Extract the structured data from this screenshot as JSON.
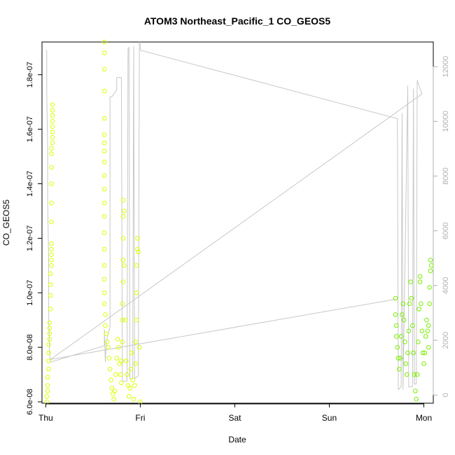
{
  "chart_data": {
    "type": "scatter",
    "title": "ATOM3 Northeast_Pacific_1 CO_GEOS5",
    "xlabel": "Date",
    "ylabel": "CO_GEOS5",
    "y2label": "",
    "x_ticks": [
      "Thu",
      "Fri",
      "Sat",
      "Sun",
      "Mon"
    ],
    "xlim": [
      -0.04,
      4.1
    ],
    "ylim": [
      5.95e-08,
      1.92e-07
    ],
    "y_ticks": [
      {
        "value": 6e-08,
        "label": "6.0e-08"
      },
      {
        "value": 8e-08,
        "label": "8.0e-08"
      },
      {
        "value": 1e-07,
        "label": "1.0e-07"
      },
      {
        "value": 1.2e-07,
        "label": "1.2e-07"
      },
      {
        "value": 1.4e-07,
        "label": "1.4e-07"
      },
      {
        "value": 1.6e-07,
        "label": "1.6e-07"
      },
      {
        "value": 1.8e-07,
        "label": "1.8e-07"
      }
    ],
    "y2lim": [
      -300,
      12900
    ],
    "y2_ticks": [
      {
        "value": 0,
        "label": "0"
      },
      {
        "value": 2000,
        "label": "2000"
      },
      {
        "value": 4000,
        "label": "4000"
      },
      {
        "value": 6000,
        "label": "6000"
      },
      {
        "value": 8000,
        "label": "8000"
      },
      {
        "value": 10000,
        "label": "10000"
      },
      {
        "value": 12000,
        "label": "12000"
      }
    ],
    "colors": {
      "scatter_early": "#ddff00",
      "scatter_late": "#77ee00",
      "altitude_line": "#c8c8c8",
      "axis": "#000000",
      "right_axis": "#b0b0b0"
    },
    "series": [
      {
        "type": "scatter",
        "points": [
          [
            0.01,
            6e-08
          ],
          [
            0.01,
            6.2e-08
          ],
          [
            0.02,
            6.4e-08
          ],
          [
            0.02,
            6.6e-08
          ],
          [
            0.02,
            6.9e-08
          ],
          [
            0.03,
            7.2e-08
          ],
          [
            0.03,
            7.5e-08
          ],
          [
            0.03,
            7.8e-08
          ],
          [
            0.03,
            8.1e-08
          ],
          [
            0.04,
            8.3e-08
          ],
          [
            0.04,
            8.5e-08
          ],
          [
            0.04,
            8.7e-08
          ],
          [
            0.04,
            8.9e-08
          ],
          [
            0.05,
            9.4e-08
          ],
          [
            0.05,
            9.9e-08
          ],
          [
            0.05,
            1.03e-07
          ],
          [
            0.05,
            1.07e-07
          ],
          [
            0.06,
            1.1e-07
          ],
          [
            0.06,
            1.12e-07
          ],
          [
            0.06,
            1.14e-07
          ],
          [
            0.06,
            1.16e-07
          ],
          [
            0.06,
            1.18e-07
          ],
          [
            0.06,
            1.26e-07
          ],
          [
            0.06,
            1.33e-07
          ],
          [
            0.06,
            1.4e-07
          ],
          [
            0.06,
            1.46e-07
          ],
          [
            0.06,
            1.51e-07
          ],
          [
            0.06,
            1.53e-07
          ],
          [
            0.07,
            1.55e-07
          ],
          [
            0.07,
            1.57e-07
          ],
          [
            0.07,
            1.59e-07
          ],
          [
            0.07,
            1.61e-07
          ],
          [
            0.07,
            1.63e-07
          ],
          [
            0.07,
            1.65e-07
          ],
          [
            0.07,
            1.67e-07
          ],
          [
            0.07,
            1.69e-07
          ],
          [
            0.62,
            1.92e-07
          ],
          [
            0.62,
            1.88e-07
          ],
          [
            0.62,
            1.82e-07
          ],
          [
            0.62,
            1.74e-07
          ],
          [
            0.62,
            1.64e-07
          ],
          [
            0.62,
            1.58e-07
          ],
          [
            0.62,
            1.55e-07
          ],
          [
            0.62,
            1.52e-07
          ],
          [
            0.62,
            1.48e-07
          ],
          [
            0.62,
            1.43e-07
          ],
          [
            0.62,
            1.38e-07
          ],
          [
            0.62,
            1.33e-07
          ],
          [
            0.62,
            1.28e-07
          ],
          [
            0.62,
            1.22e-07
          ],
          [
            0.62,
            1.16e-07
          ],
          [
            0.62,
            1.1e-07
          ],
          [
            0.62,
            1.05e-07
          ],
          [
            0.62,
            1e-07
          ],
          [
            0.62,
            9.6e-08
          ],
          [
            0.63,
            9.2e-08
          ],
          [
            0.63,
            8.8e-08
          ],
          [
            0.64,
            8.5e-08
          ],
          [
            0.65,
            8.2e-08
          ],
          [
            0.66,
            8e-08
          ],
          [
            0.67,
            7.6e-08
          ],
          [
            0.68,
            7.2e-08
          ],
          [
            0.69,
            6.8e-08
          ],
          [
            0.7,
            6.5e-08
          ],
          [
            0.71,
            6.3e-08
          ],
          [
            0.72,
            6.1e-08
          ],
          [
            0.73,
            6.4e-08
          ],
          [
            0.74,
            7e-08
          ],
          [
            0.75,
            7.6e-08
          ],
          [
            0.76,
            8.3e-08
          ],
          [
            0.77,
            8e-08
          ],
          [
            0.78,
            7.4e-08
          ],
          [
            0.79,
            7e-08
          ],
          [
            0.8,
            6.7e-08
          ],
          [
            0.8,
            7.5e-08
          ],
          [
            0.81,
            8.2e-08
          ],
          [
            0.81,
            9e-08
          ],
          [
            0.81,
            9.6e-08
          ],
          [
            0.82,
            1.04e-07
          ],
          [
            0.82,
            1.12e-07
          ],
          [
            0.82,
            1.2e-07
          ],
          [
            0.82,
            1.28e-07
          ],
          [
            0.82,
            1.34e-07
          ],
          [
            0.83,
            1.3e-07
          ],
          [
            0.83,
            1.1e-07
          ],
          [
            0.84,
            9e-08
          ],
          [
            0.85,
            7.5e-08
          ],
          [
            0.86,
            7e-08
          ],
          [
            0.87,
            6.6e-08
          ],
          [
            0.88,
            6.2e-08
          ],
          [
            0.89,
            6.5e-08
          ],
          [
            0.9,
            7.2e-08
          ],
          [
            0.91,
            7.8e-08
          ],
          [
            0.92,
            6.8e-08
          ],
          [
            0.93,
            6.1e-08
          ],
          [
            0.94,
            6.6e-08
          ],
          [
            0.95,
            7.4e-08
          ],
          [
            0.95,
            8.2e-08
          ],
          [
            0.96,
            9e-08
          ],
          [
            0.96,
            1e-07
          ],
          [
            0.96,
            1.1e-07
          ],
          [
            0.97,
            1.16e-07
          ],
          [
            0.97,
            1.2e-07
          ],
          [
            0.98,
            1.15e-07
          ],
          [
            0.99,
            8e-08
          ],
          [
            1.0,
            6e-08
          ]
        ],
        "color": "#ddff00"
      },
      {
        "type": "scatter",
        "points": [
          [
            3.7,
            9.8e-08
          ],
          [
            3.7,
            9.2e-08
          ],
          [
            3.71,
            8.8e-08
          ],
          [
            3.71,
            8.4e-08
          ],
          [
            3.72,
            8e-08
          ],
          [
            3.73,
            7.6e-08
          ],
          [
            3.74,
            7.2e-08
          ],
          [
            3.75,
            7.6e-08
          ],
          [
            3.76,
            8.4e-08
          ],
          [
            3.77,
            9.2e-08
          ],
          [
            3.78,
            9.6e-08
          ],
          [
            3.79,
            9e-08
          ],
          [
            3.8,
            8.2e-08
          ],
          [
            3.81,
            7.4e-08
          ],
          [
            3.82,
            7e-08
          ],
          [
            3.83,
            7.8e-08
          ],
          [
            3.84,
            8.6e-08
          ],
          [
            3.85,
            9.6e-08
          ],
          [
            3.86,
            1.04e-07
          ],
          [
            3.87,
            9.8e-08
          ],
          [
            3.88,
            8.8e-08
          ],
          [
            3.89,
            7.8e-08
          ],
          [
            3.9,
            7e-08
          ],
          [
            3.91,
            6.4e-08
          ],
          [
            3.92,
            6.1e-08
          ],
          [
            3.93,
            7e-08
          ],
          [
            3.94,
            8.2e-08
          ],
          [
            3.95,
            9.4e-08
          ],
          [
            3.96,
            1.04e-07
          ],
          [
            3.96,
            1.06e-07
          ],
          [
            3.97,
            9.6e-08
          ],
          [
            3.98,
            8.6e-08
          ],
          [
            3.99,
            7.8e-08
          ],
          [
            4.0,
            7.4e-08
          ],
          [
            4.01,
            7.8e-08
          ],
          [
            4.02,
            8.4e-08
          ],
          [
            4.03,
            9e-08
          ],
          [
            4.04,
            8.6e-08
          ],
          [
            4.05,
            8e-08
          ],
          [
            4.05,
            8.8e-08
          ],
          [
            4.06,
            9.6e-08
          ],
          [
            4.06,
            1.02e-07
          ],
          [
            4.07,
            1.08e-07
          ],
          [
            4.07,
            1.12e-07
          ],
          [
            4.08,
            1.1e-07
          ]
        ],
        "color": "#77ee00"
      },
      {
        "type": "line",
        "axis": "right",
        "points": [
          [
            0.0,
            12600
          ],
          [
            0.01,
            12550
          ],
          [
            0.01,
            11000
          ],
          [
            0.02,
            9000
          ],
          [
            0.02,
            7000
          ],
          [
            0.03,
            5000
          ],
          [
            0.03,
            3000
          ],
          [
            0.04,
            1500
          ],
          [
            0.05,
            1200
          ],
          [
            0.62,
            1800
          ],
          [
            0.62,
            2400
          ],
          [
            0.63,
            1200
          ],
          [
            0.64,
            1900
          ],
          [
            0.65,
            2100
          ],
          [
            0.68,
            2500
          ],
          [
            0.68,
            10900
          ],
          [
            0.7,
            10900
          ],
          [
            0.72,
            11000
          ],
          [
            0.74,
            11100
          ],
          [
            0.75,
            11150
          ],
          [
            0.75,
            11600
          ],
          [
            0.8,
            11600
          ],
          [
            0.81,
            500
          ],
          [
            0.86,
            500
          ],
          [
            0.87,
            12650
          ],
          [
            0.88,
            12700
          ],
          [
            0.89,
            600
          ],
          [
            0.92,
            600
          ],
          [
            0.93,
            12750
          ],
          [
            0.94,
            600
          ],
          [
            0.98,
            700
          ],
          [
            0.99,
            12900
          ],
          [
            1.0,
            12800
          ],
          [
            1.0,
            12600
          ],
          [
            3.72,
            10100
          ],
          [
            3.73,
            200
          ],
          [
            3.76,
            300
          ],
          [
            3.77,
            10300
          ],
          [
            3.78,
            200
          ],
          [
            3.83,
            11300
          ],
          [
            3.84,
            300
          ],
          [
            3.88,
            300
          ],
          [
            3.89,
            11200
          ],
          [
            3.9,
            400
          ],
          [
            3.92,
            400
          ],
          [
            3.93,
            11500
          ],
          [
            3.95,
            11300
          ],
          [
            3.97,
            11100
          ],
          [
            3.98,
            11000
          ],
          [
            0.05,
            1300
          ],
          [
            3.7,
            3500
          ]
        ],
        "color": "#c8c8c8"
      }
    ]
  }
}
